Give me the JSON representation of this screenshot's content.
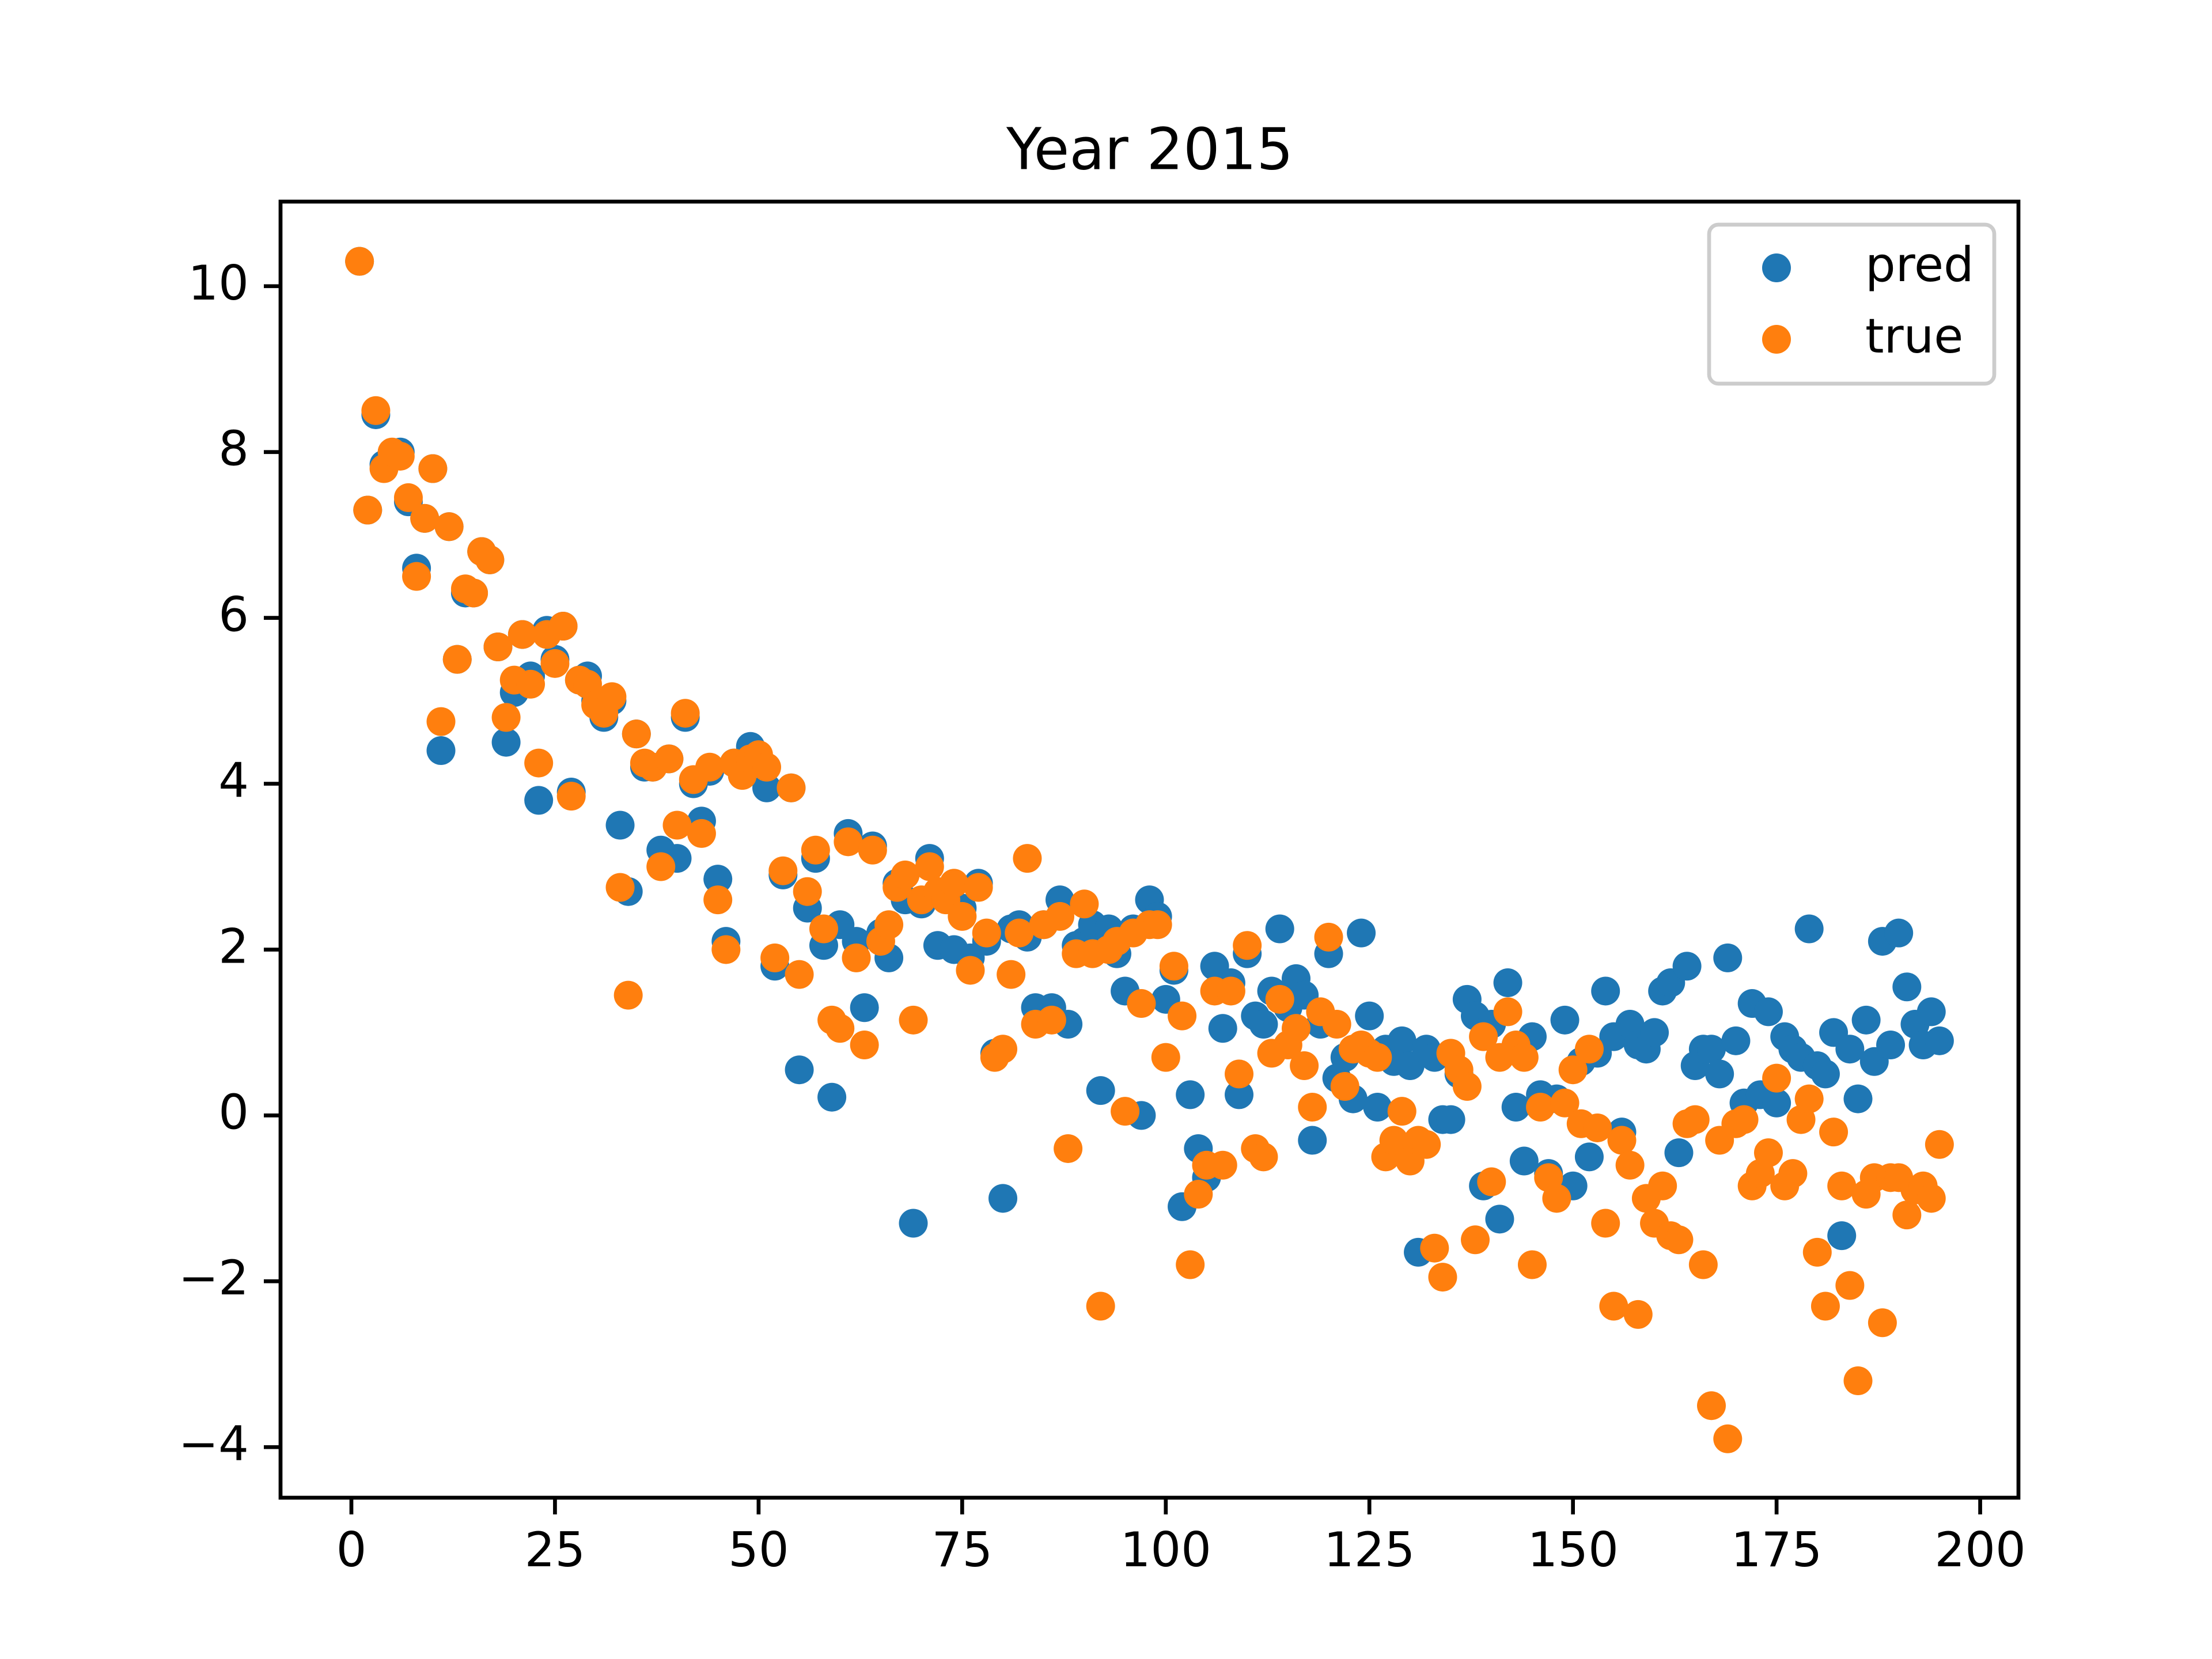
{
  "chart_data": {
    "type": "scatter",
    "title": "Year 2015",
    "x": [
      1,
      2,
      3,
      4,
      5,
      6,
      7,
      8,
      9,
      10,
      11,
      12,
      13,
      14,
      15,
      16,
      17,
      18,
      19,
      20,
      21,
      22,
      23,
      24,
      25,
      26,
      27,
      28,
      29,
      30,
      31,
      32,
      33,
      34,
      35,
      36,
      37,
      38,
      39,
      40,
      41,
      42,
      43,
      44,
      45,
      46,
      47,
      48,
      49,
      50,
      51,
      52,
      53,
      54,
      55,
      56,
      57,
      58,
      59,
      60,
      61,
      62,
      63,
      64,
      65,
      66,
      67,
      68,
      69,
      70,
      71,
      72,
      73,
      74,
      75,
      76,
      77,
      78,
      79,
      80,
      81,
      82,
      83,
      84,
      85,
      86,
      87,
      88,
      89,
      90,
      91,
      92,
      93,
      94,
      95,
      96,
      97,
      98,
      99,
      100,
      101,
      102,
      103,
      104,
      105,
      106,
      107,
      108,
      109,
      110,
      111,
      112,
      113,
      114,
      115,
      116,
      117,
      118,
      119,
      120,
      121,
      122,
      123,
      124,
      125,
      126,
      127,
      128,
      129,
      130,
      131,
      132,
      133,
      134,
      135,
      136,
      137,
      138,
      139,
      140,
      141,
      142,
      143,
      144,
      145,
      146,
      147,
      148,
      149,
      150,
      151,
      152,
      153,
      154,
      155,
      156,
      157,
      158,
      159,
      160,
      161,
      162,
      163,
      164,
      165,
      166,
      167,
      168,
      169,
      170,
      171,
      172,
      173,
      174,
      175,
      176,
      177,
      178,
      179,
      180,
      181,
      182,
      183,
      184,
      185,
      186,
      187,
      188,
      189,
      190,
      191,
      192,
      193,
      194,
      195
    ],
    "series": [
      {
        "name": "pred",
        "color": "#1f77b4",
        "values": [
          10.3,
          7.3,
          8.45,
          7.85,
          7.95,
          8.0,
          7.4,
          6.6,
          7.2,
          7.8,
          4.4,
          7.1,
          5.5,
          6.3,
          6.3,
          6.8,
          6.7,
          5.65,
          4.5,
          5.1,
          5.8,
          5.3,
          3.8,
          5.85,
          5.5,
          5.9,
          3.9,
          5.25,
          5.3,
          5.0,
          4.8,
          5.0,
          3.5,
          2.7,
          4.6,
          4.2,
          4.2,
          3.2,
          4.3,
          3.1,
          4.8,
          4.0,
          3.55,
          4.15,
          2.85,
          2.1,
          4.25,
          4.2,
          4.45,
          4.3,
          3.95,
          1.8,
          2.9,
          3.95,
          0.55,
          2.5,
          3.1,
          2.05,
          0.22,
          2.3,
          3.4,
          2.1,
          1.3,
          3.25,
          2.2,
          1.9,
          2.8,
          2.6,
          -1.3,
          2.55,
          3.1,
          2.05,
          2.65,
          2.0,
          2.5,
          1.9,
          2.8,
          2.1,
          0.75,
          -1.0,
          2.25,
          2.3,
          2.15,
          1.3,
          2.3,
          1.3,
          2.6,
          1.1,
          2.05,
          2.1,
          2.3,
          0.3,
          2.25,
          1.95,
          1.5,
          2.25,
          0.0,
          2.6,
          2.4,
          1.4,
          1.75,
          -1.1,
          0.25,
          -0.4,
          -0.75,
          1.8,
          1.05,
          1.6,
          0.25,
          1.95,
          1.2,
          1.1,
          1.5,
          2.25,
          1.3,
          1.65,
          1.45,
          -0.3,
          1.1,
          1.95,
          0.45,
          0.7,
          0.2,
          2.2,
          1.2,
          0.1,
          0.8,
          0.65,
          0.9,
          0.6,
          -1.65,
          0.8,
          0.7,
          -0.05,
          -0.05,
          0.5,
          1.4,
          1.2,
          -0.85,
          1.1,
          -1.25,
          1.6,
          0.1,
          -0.55,
          0.95,
          0.25,
          -0.7,
          0.2,
          1.15,
          -0.85,
          0.65,
          -0.5,
          0.75,
          1.5,
          0.95,
          -0.2,
          1.1,
          0.85,
          0.8,
          1.0,
          1.5,
          1.6,
          -0.45,
          1.8,
          0.6,
          0.8,
          0.8,
          0.5,
          1.9,
          0.9,
          0.15,
          1.35,
          0.25,
          1.25,
          0.15,
          0.95,
          0.8,
          0.7,
          2.25,
          0.6,
          0.5,
          1.0,
          -1.45,
          0.8,
          0.2,
          1.15,
          0.65,
          2.1,
          0.85,
          2.2,
          1.55,
          1.1,
          0.85,
          1.25,
          0.9
        ]
      },
      {
        "name": "true",
        "color": "#ff7f0e",
        "values": [
          10.3,
          7.3,
          8.5,
          7.8,
          8.0,
          7.95,
          7.45,
          6.5,
          7.2,
          7.8,
          4.75,
          7.1,
          5.5,
          6.35,
          6.3,
          6.8,
          6.7,
          5.65,
          4.8,
          5.25,
          5.8,
          5.2,
          4.25,
          5.8,
          5.45,
          5.9,
          3.85,
          5.25,
          5.2,
          4.95,
          4.85,
          5.05,
          2.75,
          1.45,
          4.6,
          4.25,
          4.2,
          3.0,
          4.3,
          3.5,
          4.85,
          4.05,
          3.4,
          4.2,
          2.6,
          2.0,
          4.25,
          4.1,
          4.3,
          4.35,
          4.2,
          1.9,
          2.95,
          3.95,
          1.7,
          2.7,
          3.2,
          2.25,
          1.15,
          1.05,
          3.3,
          1.9,
          0.85,
          3.2,
          2.1,
          2.3,
          2.75,
          2.9,
          1.15,
          2.6,
          3.0,
          2.7,
          2.6,
          2.8,
          2.4,
          1.75,
          2.75,
          2.2,
          0.7,
          0.8,
          1.7,
          2.2,
          3.1,
          1.1,
          2.3,
          1.15,
          2.4,
          -0.4,
          1.95,
          2.55,
          1.95,
          -2.3,
          2.0,
          2.1,
          0.05,
          2.2,
          1.35,
          2.3,
          2.3,
          0.7,
          1.8,
          1.2,
          -1.8,
          -0.95,
          -0.6,
          1.5,
          -0.6,
          1.5,
          0.5,
          2.05,
          -0.4,
          -0.5,
          0.75,
          1.4,
          0.85,
          1.05,
          0.6,
          0.1,
          1.25,
          2.15,
          1.1,
          0.35,
          0.8,
          0.85,
          0.75,
          0.7,
          -0.5,
          -0.3,
          0.05,
          -0.55,
          -0.3,
          -0.35,
          -1.6,
          -1.95,
          0.75,
          0.55,
          0.35,
          -1.5,
          0.95,
          -0.8,
          0.7,
          1.25,
          0.85,
          0.7,
          -1.8,
          0.1,
          -0.75,
          -1.0,
          0.15,
          0.55,
          -0.1,
          0.8,
          -0.15,
          -1.3,
          -2.3,
          -0.3,
          -0.6,
          -2.4,
          -1.0,
          -1.3,
          -0.85,
          -1.45,
          -1.5,
          -0.1,
          -0.05,
          -1.8,
          -3.5,
          -0.3,
          -3.9,
          -0.1,
          -0.05,
          -0.85,
          -0.7,
          -0.45,
          0.45,
          -0.85,
          -0.7,
          -0.05,
          0.2,
          -1.65,
          -2.3,
          -0.2,
          -0.85,
          -2.05,
          -3.2,
          -0.95,
          -0.75,
          -2.5,
          -0.75,
          -0.75,
          -1.2,
          -0.9,
          -0.85,
          -1.0,
          -0.35
        ]
      }
    ],
    "xlim": [
      -8.7,
      204.7
    ],
    "ylim": [
      -4.61,
      11.02
    ],
    "xticks": [
      0,
      25,
      50,
      75,
      100,
      125,
      150,
      175,
      200
    ],
    "yticks": [
      {
        "value": -4,
        "label": "−4"
      },
      {
        "value": -2,
        "label": "−2"
      },
      0,
      2,
      4,
      6,
      8,
      10
    ],
    "legend": "upper right"
  }
}
